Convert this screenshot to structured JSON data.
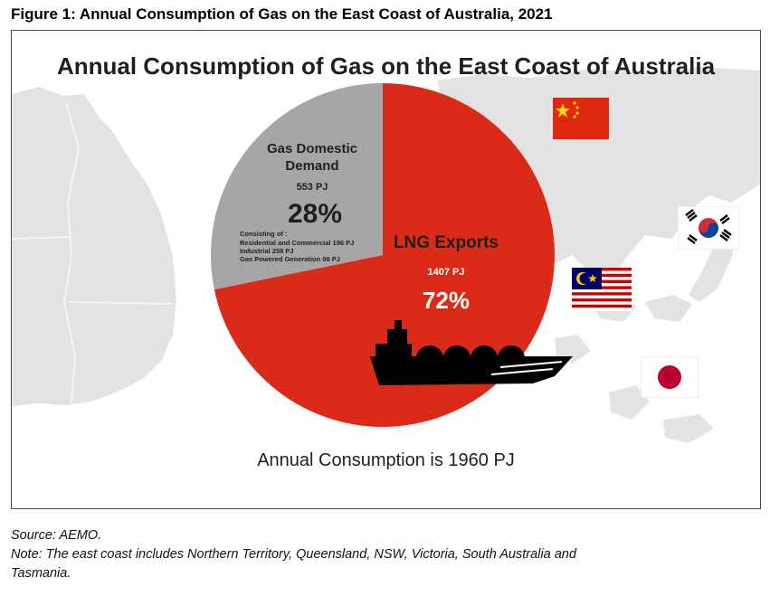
{
  "figure_caption": "Figure 1: Annual Consumption of Gas on the East Coast of Australia, 2021",
  "chart_data": {
    "type": "pie",
    "title": "Annual Consumption of Gas on the East Coast of Australia",
    "slices": [
      {
        "label_line1": "Gas Domestic",
        "label_line2": "Demand",
        "value": 553,
        "value_text": "553 PJ",
        "percent": 28,
        "percent_text": "28%",
        "color": "#a6a6a6",
        "breakdown_heading": "Consisting of :",
        "breakdown": [
          "Residential and Commercial 196 PJ",
          "Industrial 258 PJ",
          "Gas Powered Generation 98 PJ"
        ]
      },
      {
        "label_line1": "LNG Exports",
        "value": 1407,
        "value_text": "1407 PJ",
        "percent": 72,
        "percent_text": "72%",
        "color": "#d92b17"
      }
    ],
    "total_text": "Annual Consumption is 1960 PJ"
  },
  "flags": [
    "china-flag",
    "south-korea-flag",
    "malaysia-flag",
    "japan-flag"
  ],
  "source_note": "Source: AEMO.",
  "note_line1": "Note: The east coast includes Northern Territory, Queensland, NSW, Victoria, South Australia and",
  "note_line2": "Tasmania."
}
